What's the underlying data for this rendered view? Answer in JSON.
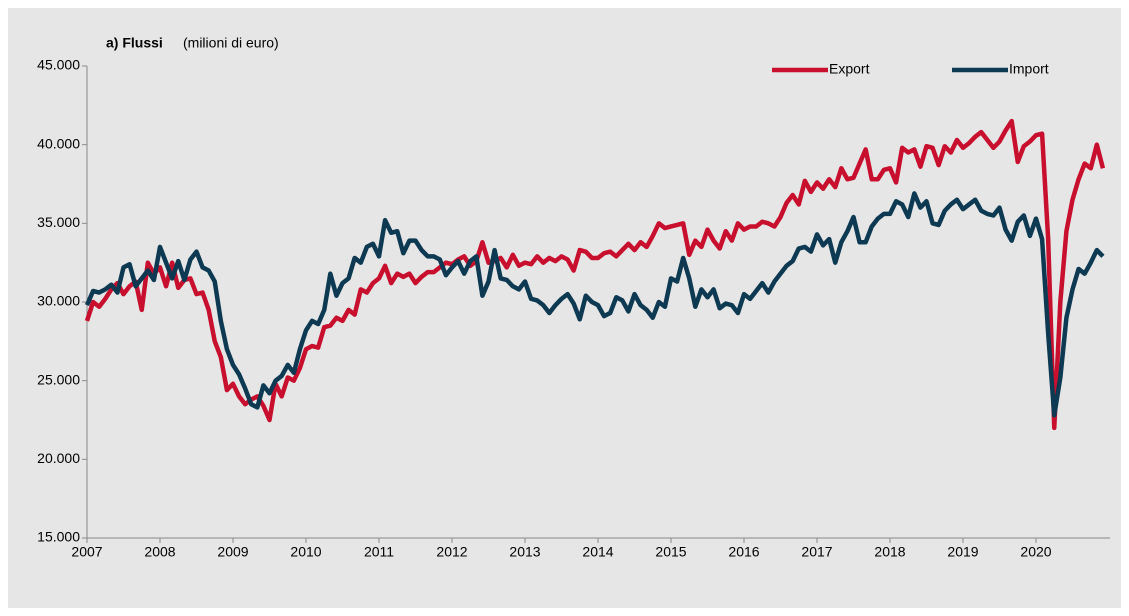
{
  "chart_data": {
    "type": "line",
    "title": "a) Flussi",
    "subtitle": "(milioni di euro)",
    "categories": [
      "2007",
      null,
      null,
      null,
      null,
      null,
      null,
      null,
      null,
      null,
      null,
      null,
      "2008",
      null,
      null,
      null,
      null,
      null,
      null,
      null,
      null,
      null,
      null,
      null,
      "2009",
      null,
      null,
      null,
      null,
      null,
      null,
      null,
      null,
      null,
      null,
      null,
      "2010",
      null,
      null,
      null,
      null,
      null,
      null,
      null,
      null,
      null,
      null,
      null,
      "2011",
      null,
      null,
      null,
      null,
      null,
      null,
      null,
      null,
      null,
      null,
      null,
      "2012",
      null,
      null,
      null,
      null,
      null,
      null,
      null,
      null,
      null,
      null,
      null,
      "2013",
      null,
      null,
      null,
      null,
      null,
      null,
      null,
      null,
      null,
      null,
      null,
      "2014",
      null,
      null,
      null,
      null,
      null,
      null,
      null,
      null,
      null,
      null,
      null,
      "2015",
      null,
      null,
      null,
      null,
      null,
      null,
      null,
      null,
      null,
      null,
      null,
      "2016",
      null,
      null,
      null,
      null,
      null,
      null,
      null,
      null,
      null,
      null,
      null,
      "2017",
      null,
      null,
      null,
      null,
      null,
      null,
      null,
      null,
      null,
      null,
      null,
      "2018",
      null,
      null,
      null,
      null,
      null,
      null,
      null,
      null,
      null,
      null,
      null,
      "2019",
      null,
      null,
      null,
      null,
      null,
      null,
      null,
      null,
      null,
      null,
      null,
      "2020",
      null,
      null,
      null,
      null,
      null,
      null,
      null,
      null,
      null,
      null,
      null
    ],
    "series": [
      {
        "name": "Export",
        "color": "#c8102e",
        "values": [
          28800,
          30000,
          29700,
          30200,
          30800,
          31200,
          30500,
          31000,
          31300,
          29500,
          32500,
          31800,
          32200,
          31000,
          32500,
          30900,
          31400,
          31500,
          30500,
          30600,
          29500,
          27500,
          26500,
          24400,
          24800,
          24000,
          23500,
          23800,
          24000,
          23400,
          22500,
          24800,
          24000,
          25200,
          25000,
          25800,
          27000,
          27200,
          27100,
          28400,
          28500,
          29000,
          28800,
          29500,
          29200,
          30800,
          30600,
          31200,
          31500,
          32300,
          31200,
          31800,
          31600,
          31800,
          31200,
          31600,
          31900,
          31900,
          32200,
          32500,
          32400,
          32700,
          32900,
          32300,
          32600,
          33800,
          32500,
          32600,
          32800,
          32200,
          33000,
          32300,
          32500,
          32400,
          32900,
          32500,
          32800,
          32600,
          32900,
          32700,
          32000,
          33300,
          33200,
          32800,
          32800,
          33100,
          33200,
          32900,
          33300,
          33700,
          33300,
          33800,
          33500,
          34200,
          35000,
          34700,
          34800,
          34900,
          35000,
          33000,
          33900,
          33500,
          34600,
          33900,
          33400,
          34500,
          33900,
          35000,
          34600,
          34800,
          34800,
          35100,
          35000,
          34800,
          35400,
          36300,
          36800,
          36200,
          37700,
          37000,
          37600,
          37200,
          37800,
          37300,
          38500,
          37800,
          37900,
          38800,
          39700,
          37800,
          37800,
          38400,
          38500,
          37600,
          39800,
          39500,
          39700,
          38600,
          39900,
          39800,
          38700,
          39900,
          39500,
          40300,
          39800,
          40100,
          40500,
          40800,
          40300,
          39800,
          40200,
          40900,
          41500,
          38900,
          39900,
          40200,
          40600,
          40700,
          34000,
          22000,
          30000,
          34500,
          36500,
          37800,
          38800,
          38500,
          40000,
          38500
        ]
      },
      {
        "name": "Import",
        "color": "#0d3a52",
        "values": [
          29800,
          30700,
          30600,
          30800,
          31100,
          30600,
          32200,
          32400,
          31000,
          31500,
          32000,
          31400,
          33500,
          32500,
          31500,
          32600,
          31400,
          32700,
          33200,
          32200,
          32000,
          31300,
          28800,
          27000,
          26000,
          25400,
          24500,
          23500,
          23300,
          24700,
          24200,
          25000,
          25300,
          26000,
          25500,
          27000,
          28200,
          28800,
          28600,
          29500,
          31800,
          30400,
          31200,
          31500,
          32800,
          32500,
          33500,
          33700,
          32900,
          35200,
          34400,
          34500,
          33100,
          33900,
          33900,
          33300,
          32900,
          32900,
          32700,
          31700,
          32200,
          32600,
          31800,
          32600,
          32900,
          30400,
          31300,
          33300,
          31500,
          31400,
          31000,
          30800,
          31300,
          30200,
          30100,
          29800,
          29300,
          29800,
          30200,
          30500,
          29900,
          28900,
          30400,
          30000,
          29800,
          29100,
          29300,
          30300,
          30100,
          29400,
          30500,
          29800,
          29500,
          29000,
          30000,
          29700,
          31500,
          31300,
          32800,
          31500,
          29700,
          30800,
          30300,
          30800,
          29600,
          29900,
          29800,
          29300,
          30500,
          30200,
          30700,
          31200,
          30600,
          31300,
          31800,
          32300,
          32600,
          33400,
          33500,
          33200,
          34300,
          33600,
          34000,
          32500,
          33800,
          34500,
          35400,
          33800,
          33800,
          34800,
          35300,
          35600,
          35600,
          36400,
          36200,
          35400,
          36900,
          36000,
          36400,
          35000,
          34900,
          35800,
          36200,
          36500,
          35900,
          36200,
          36500,
          35800,
          35600,
          35500,
          36000,
          34600,
          33900,
          35100,
          35500,
          34200,
          35300,
          34000,
          28000,
          22800,
          25200,
          29000,
          30800,
          32100,
          31800,
          32500,
          33300,
          32900
        ]
      }
    ],
    "ylim": [
      15000,
      45000
    ],
    "yticks": [
      {
        "value": 15000,
        "label": "15.000"
      },
      {
        "value": 20000,
        "label": "20.000"
      },
      {
        "value": 25000,
        "label": "25.000"
      },
      {
        "value": 30000,
        "label": "30.000"
      },
      {
        "value": 35000,
        "label": "35.000"
      },
      {
        "value": 40000,
        "label": "40.000"
      },
      {
        "value": 45000,
        "label": "45.000"
      }
    ],
    "grid": false,
    "legend": "top-right"
  }
}
